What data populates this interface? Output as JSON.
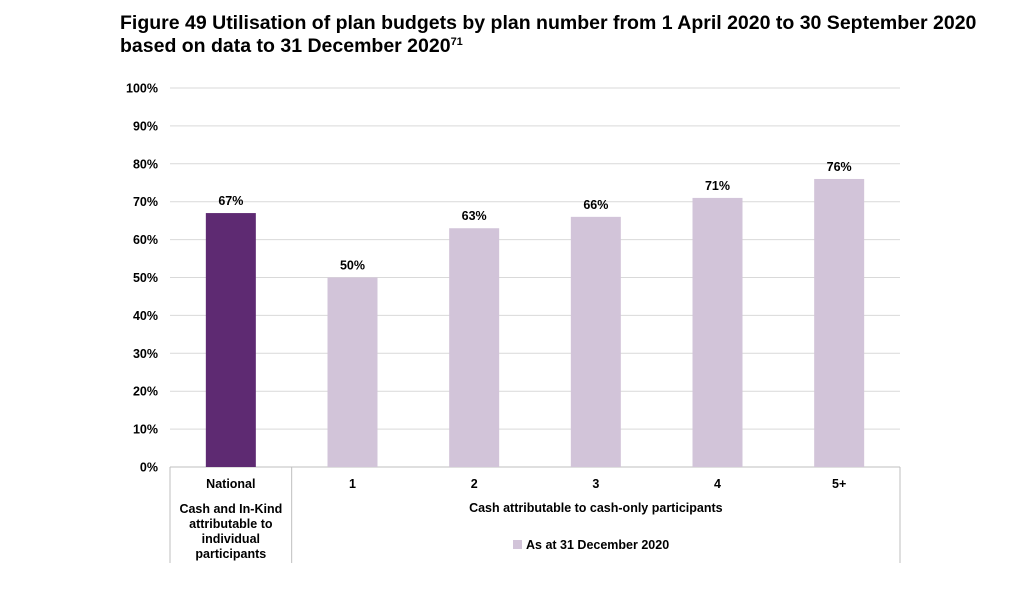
{
  "title": "Figure 49 Utilisation of plan budgets by plan number from 1 April 2020 to 30 September 2020 based on data to 31 December 2020",
  "title_footnote": "71",
  "colors": {
    "national": "#5e2a72",
    "cash": "#d2c4d9",
    "grid": "#d9d9d9",
    "axis": "#bfbfbf"
  },
  "chart_data": {
    "type": "bar",
    "categories": [
      "National",
      "1",
      "2",
      "3",
      "4",
      "5+"
    ],
    "values": [
      67,
      50,
      63,
      66,
      71,
      76
    ],
    "value_labels": [
      "67%",
      "50%",
      "63%",
      "66%",
      "71%",
      "76%"
    ],
    "ylim": [
      0,
      100
    ],
    "yticks": [
      "0%",
      "10%",
      "20%",
      "30%",
      "40%",
      "50%",
      "60%",
      "70%",
      "80%",
      "90%",
      "100%"
    ],
    "grid": true,
    "groups": [
      {
        "label": "Cash and In-Kind attributable to individual participants",
        "categories": [
          "National"
        ]
      },
      {
        "label": "Cash attributable to cash-only participants",
        "categories": [
          "1",
          "2",
          "3",
          "4",
          "5+"
        ]
      }
    ],
    "legend": {
      "position": "bottom",
      "entries": [
        "As at 31 December 2020"
      ]
    }
  }
}
